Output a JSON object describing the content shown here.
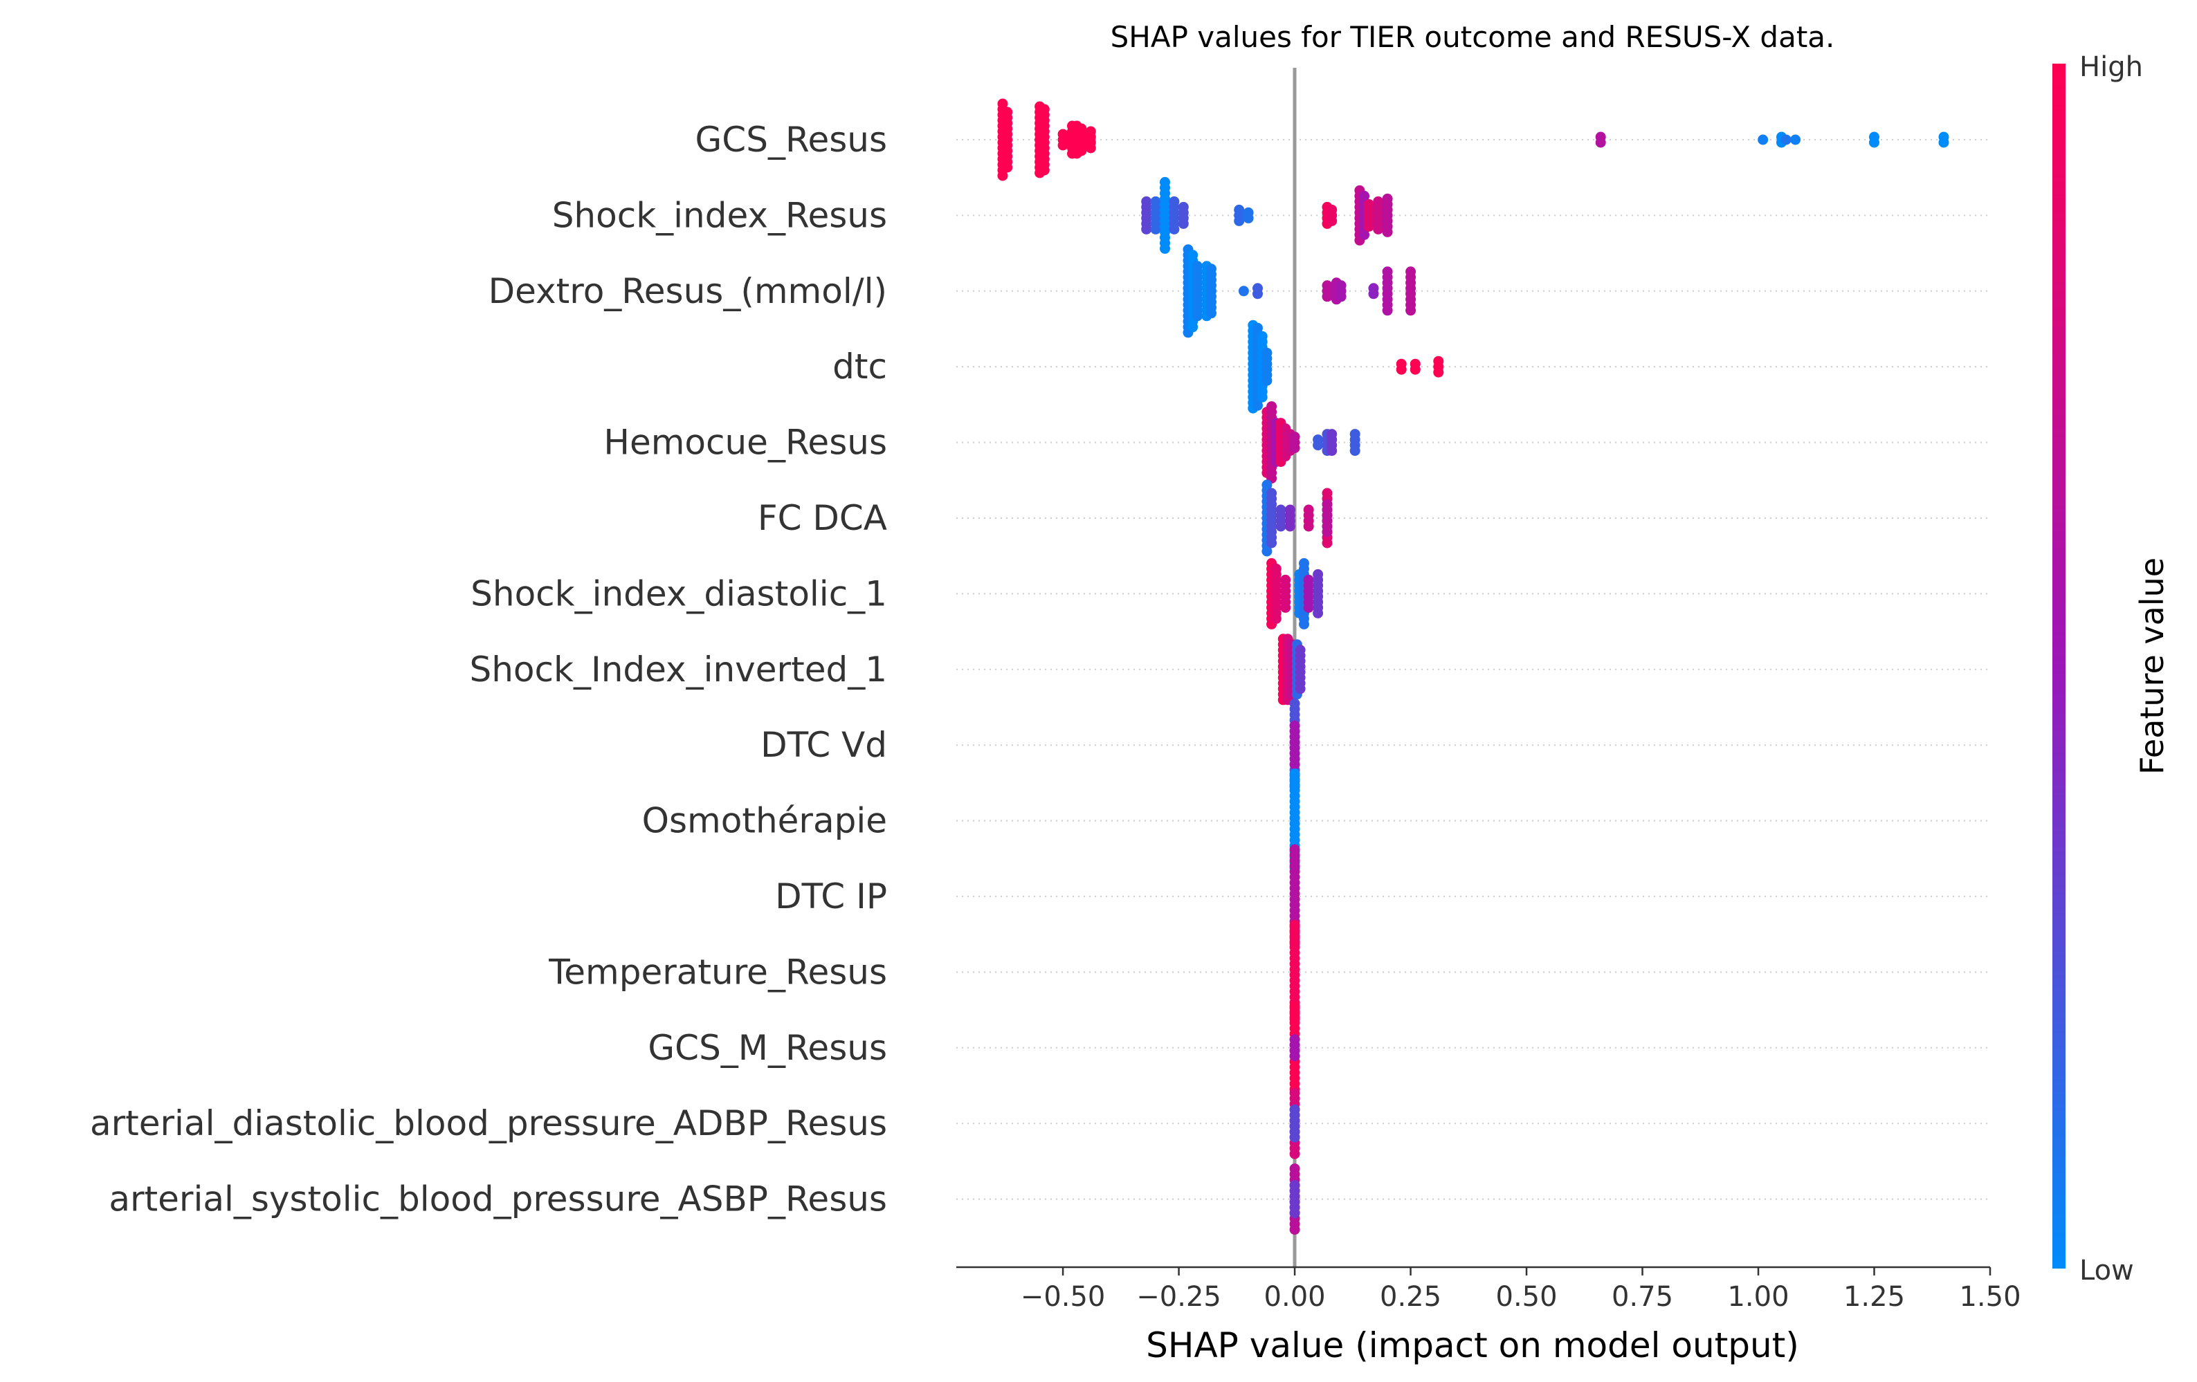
{
  "chart_data": {
    "type": "scatter",
    "title": "SHAP values for TIER outcome and RESUS-X data.",
    "xlabel": "SHAP value (impact on model output)",
    "xlim": [
      -0.73,
      1.5
    ],
    "xticks": [
      {
        "value": -0.5,
        "label": "−0.50"
      },
      {
        "value": -0.25,
        "label": "−0.25"
      },
      {
        "value": 0.0,
        "label": "0.00"
      },
      {
        "value": 0.25,
        "label": "0.25"
      },
      {
        "value": 0.5,
        "label": "0.50"
      },
      {
        "value": 0.75,
        "label": "0.75"
      },
      {
        "value": 1.0,
        "label": "1.00"
      },
      {
        "value": 1.25,
        "label": "1.25"
      },
      {
        "value": 1.5,
        "label": "1.50"
      }
    ],
    "colorbar": {
      "label": "Feature value",
      "high_label": "High",
      "low_label": "Low",
      "high_color": "#ff0052",
      "mid_color": "#9b16b8",
      "low_color": "#008bfb"
    },
    "features": [
      {
        "name": "GCS_Resus",
        "points": [
          {
            "x": -0.63,
            "v": 1.0,
            "n": 14
          },
          {
            "x": -0.62,
            "v": 1.0,
            "n": 11
          },
          {
            "x": -0.55,
            "v": 1.0,
            "n": 13
          },
          {
            "x": -0.54,
            "v": 1.0,
            "n": 12
          },
          {
            "x": -0.5,
            "v": 1.0,
            "n": 3
          },
          {
            "x": -0.48,
            "v": 1.0,
            "n": 6
          },
          {
            "x": -0.47,
            "v": 1.0,
            "n": 6
          },
          {
            "x": -0.46,
            "v": 1.0,
            "n": 5
          },
          {
            "x": -0.44,
            "v": 1.0,
            "n": 4
          },
          {
            "x": 0.66,
            "v": 0.62,
            "n": 2
          },
          {
            "x": 1.01,
            "v": 0.05,
            "n": 1
          },
          {
            "x": 1.05,
            "v": 0.0,
            "n": 2
          },
          {
            "x": 1.06,
            "v": 0.1,
            "n": 1
          },
          {
            "x": 1.08,
            "v": 0.05,
            "n": 1
          },
          {
            "x": 1.25,
            "v": 0.0,
            "n": 2
          },
          {
            "x": 1.4,
            "v": 0.0,
            "n": 2
          }
        ]
      },
      {
        "name": "Shock_index_Resus",
        "points": [
          {
            "x": -0.32,
            "v": 0.3,
            "n": 6
          },
          {
            "x": -0.3,
            "v": 0.15,
            "n": 6
          },
          {
            "x": -0.28,
            "v": 0.0,
            "n": 13
          },
          {
            "x": -0.26,
            "v": 0.2,
            "n": 6
          },
          {
            "x": -0.24,
            "v": 0.25,
            "n": 4
          },
          {
            "x": -0.12,
            "v": 0.15,
            "n": 3
          },
          {
            "x": -0.1,
            "v": 0.1,
            "n": 2
          },
          {
            "x": 0.07,
            "v": 0.95,
            "n": 4
          },
          {
            "x": 0.08,
            "v": 0.9,
            "n": 3
          },
          {
            "x": 0.14,
            "v": 0.7,
            "n": 10
          },
          {
            "x": 0.15,
            "v": 0.55,
            "n": 8
          },
          {
            "x": 0.16,
            "v": 0.85,
            "n": 5
          },
          {
            "x": 0.18,
            "v": 0.75,
            "n": 6
          },
          {
            "x": 0.2,
            "v": 0.65,
            "n": 7
          }
        ]
      },
      {
        "name": "Dextro_Resus_(mmol/l)",
        "points": [
          {
            "x": -0.23,
            "v": 0.05,
            "n": 16
          },
          {
            "x": -0.22,
            "v": 0.0,
            "n": 14
          },
          {
            "x": -0.21,
            "v": 0.05,
            "n": 10
          },
          {
            "x": -0.19,
            "v": 0.0,
            "n": 10
          },
          {
            "x": -0.18,
            "v": 0.05,
            "n": 9
          },
          {
            "x": -0.11,
            "v": 0.1,
            "n": 1
          },
          {
            "x": -0.08,
            "v": 0.2,
            "n": 2
          },
          {
            "x": 0.07,
            "v": 0.65,
            "n": 3
          },
          {
            "x": 0.09,
            "v": 0.6,
            "n": 4
          },
          {
            "x": 0.1,
            "v": 0.55,
            "n": 3
          },
          {
            "x": 0.17,
            "v": 0.45,
            "n": 2
          },
          {
            "x": 0.2,
            "v": 0.6,
            "n": 8
          },
          {
            "x": 0.25,
            "v": 0.65,
            "n": 8
          }
        ]
      },
      {
        "name": "dtc",
        "points": [
          {
            "x": -0.09,
            "v": 0.0,
            "n": 16
          },
          {
            "x": -0.08,
            "v": 0.05,
            "n": 15
          },
          {
            "x": -0.07,
            "v": 0.0,
            "n": 12
          },
          {
            "x": -0.06,
            "v": 0.05,
            "n": 6
          },
          {
            "x": 0.23,
            "v": 1.0,
            "n": 2
          },
          {
            "x": 0.26,
            "v": 1.0,
            "n": 2
          },
          {
            "x": 0.31,
            "v": 1.0,
            "n": 3
          }
        ]
      },
      {
        "name": "Hemocue_Resus",
        "points": [
          {
            "x": -0.06,
            "v": 0.85,
            "n": 12
          },
          {
            "x": -0.05,
            "v": 0.7,
            "n": 14
          },
          {
            "x": -0.04,
            "v": 0.55,
            "n": 8
          },
          {
            "x": -0.03,
            "v": 0.9,
            "n": 8
          },
          {
            "x": -0.02,
            "v": 0.8,
            "n": 6
          },
          {
            "x": -0.01,
            "v": 0.75,
            "n": 4
          },
          {
            "x": 0.0,
            "v": 0.65,
            "n": 3
          },
          {
            "x": 0.05,
            "v": 0.2,
            "n": 2
          },
          {
            "x": 0.07,
            "v": 0.25,
            "n": 4
          },
          {
            "x": 0.08,
            "v": 0.35,
            "n": 4
          },
          {
            "x": 0.13,
            "v": 0.2,
            "n": 4
          }
        ]
      },
      {
        "name": "FC  DCA",
        "points": [
          {
            "x": -0.06,
            "v": 0.1,
            "n": 13
          },
          {
            "x": -0.05,
            "v": 0.25,
            "n": 10
          },
          {
            "x": -0.03,
            "v": 0.3,
            "n": 4
          },
          {
            "x": -0.01,
            "v": 0.4,
            "n": 4
          },
          {
            "x": 0.03,
            "v": 0.75,
            "n": 4
          },
          {
            "x": 0.07,
            "v": 0.85,
            "n": 10
          },
          {
            "x": 0.07,
            "v": 0.65,
            "n": 6
          }
        ]
      },
      {
        "name": "Shock_index_diastolic_1",
        "points": [
          {
            "x": -0.05,
            "v": 0.95,
            "n": 12
          },
          {
            "x": -0.04,
            "v": 0.85,
            "n": 10
          },
          {
            "x": -0.02,
            "v": 0.8,
            "n": 6
          },
          {
            "x": 0.01,
            "v": 0.05,
            "n": 8
          },
          {
            "x": 0.02,
            "v": 0.1,
            "n": 12
          },
          {
            "x": 0.03,
            "v": 0.55,
            "n": 6
          },
          {
            "x": 0.05,
            "v": 0.35,
            "n": 8
          }
        ]
      },
      {
        "name": "Shock_Index_inverted_1",
        "points": [
          {
            "x": -0.025,
            "v": 0.95,
            "n": 12
          },
          {
            "x": -0.015,
            "v": 0.8,
            "n": 12
          },
          {
            "x": -0.005,
            "v": 0.7,
            "n": 10
          },
          {
            "x": 0.005,
            "v": 0.15,
            "n": 10
          },
          {
            "x": 0.012,
            "v": 0.35,
            "n": 8
          }
        ]
      },
      {
        "name": "DTC Vd",
        "points": [
          {
            "x": 0.0,
            "v": 0.25,
            "n": 16
          },
          {
            "x": 0.0,
            "v": 0.55,
            "n": 8
          }
        ]
      },
      {
        "name": "Osmothérapie",
        "points": [
          {
            "x": 0.0,
            "v": 0.0,
            "n": 18
          }
        ]
      },
      {
        "name": "DTC IP",
        "points": [
          {
            "x": 0.0,
            "v": 0.62,
            "n": 18
          }
        ]
      },
      {
        "name": "Temperature_Resus",
        "points": [
          {
            "x": 0.0,
            "v": 0.95,
            "n": 18
          }
        ]
      },
      {
        "name": "GCS_M_Resus",
        "points": [
          {
            "x": 0.0,
            "v": 1.0,
            "n": 16
          },
          {
            "x": 0.0,
            "v": 0.55,
            "n": 4
          }
        ]
      },
      {
        "name": "arterial_diastolic_blood_pressure_ADBP_Resus",
        "points": [
          {
            "x": 0.0,
            "v": 0.8,
            "n": 12
          },
          {
            "x": 0.0,
            "v": 0.3,
            "n": 6
          }
        ]
      },
      {
        "name": "arterial_systolic_blood_pressure_ASBP_Resus",
        "points": [
          {
            "x": 0.0,
            "v": 0.65,
            "n": 12
          },
          {
            "x": 0.0,
            "v": 0.35,
            "n": 6
          }
        ]
      }
    ]
  }
}
